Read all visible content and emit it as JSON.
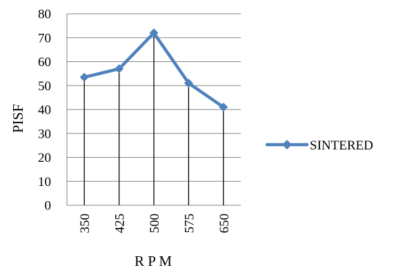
{
  "chart_data": {
    "type": "line",
    "x": [
      "350",
      "425",
      "500",
      "575",
      "650"
    ],
    "series": [
      {
        "name": "SINTERED",
        "values": [
          53.5,
          57,
          72,
          51,
          41
        ],
        "color": "#4F81BD"
      }
    ],
    "xlabel": "R P M",
    "ylabel": "PISF",
    "ylim": [
      0,
      80
    ],
    "yticks": [
      0,
      10,
      20,
      30,
      40,
      50,
      60,
      70,
      80
    ],
    "grid": "horizontal",
    "drop_lines": true,
    "marker": "diamond",
    "legend_position": "right"
  }
}
